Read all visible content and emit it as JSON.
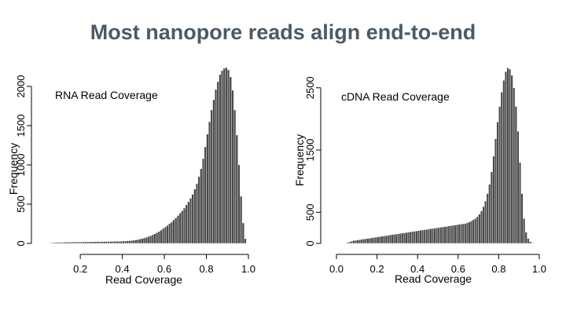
{
  "slide": {
    "title": "Most nanopore reads align end-to-end"
  },
  "chart_data": [
    {
      "type": "bar",
      "title": "RNA Read Coverage",
      "xlabel": "Read Coverage",
      "ylabel": "Frequency",
      "xlim": [
        0.05,
        1.0
      ],
      "ylim": [
        0,
        2000
      ],
      "xticks": [
        "0.2",
        "0.4",
        "0.6",
        "0.8",
        "1.0"
      ],
      "yticks": [
        "0",
        "500",
        "1000",
        "1500",
        "2000"
      ],
      "bin_width": 0.01,
      "colors": {
        "bar": "#4a4a4a",
        "edge": "#ffffff"
      },
      "bins": {
        "x": [
          0.05,
          0.06,
          0.07,
          0.08,
          0.09,
          0.1,
          0.11,
          0.12,
          0.13,
          0.14,
          0.15,
          0.16,
          0.17,
          0.18,
          0.19,
          0.2,
          0.21,
          0.22,
          0.23,
          0.24,
          0.25,
          0.26,
          0.27,
          0.28,
          0.29,
          0.3,
          0.31,
          0.32,
          0.33,
          0.34,
          0.35,
          0.36,
          0.37,
          0.38,
          0.39,
          0.4,
          0.41,
          0.42,
          0.43,
          0.44,
          0.45,
          0.46,
          0.47,
          0.48,
          0.49,
          0.5,
          0.51,
          0.52,
          0.53,
          0.54,
          0.55,
          0.56,
          0.57,
          0.58,
          0.59,
          0.6,
          0.61,
          0.62,
          0.63,
          0.64,
          0.65,
          0.66,
          0.67,
          0.68,
          0.69,
          0.7,
          0.71,
          0.72,
          0.73,
          0.74,
          0.75,
          0.76,
          0.77,
          0.78,
          0.79,
          0.8,
          0.81,
          0.82,
          0.83,
          0.84,
          0.85,
          0.86,
          0.87,
          0.88,
          0.89,
          0.9,
          0.91,
          0.92,
          0.93,
          0.94,
          0.95,
          0.96,
          0.97,
          0.98
        ],
        "values": [
          5,
          8,
          10,
          12,
          12,
          13,
          14,
          15,
          15,
          16,
          16,
          17,
          17,
          18,
          18,
          19,
          19,
          20,
          20,
          20,
          21,
          21,
          22,
          22,
          22,
          23,
          23,
          24,
          24,
          25,
          25,
          26,
          26,
          27,
          28,
          29,
          30,
          32,
          34,
          37,
          40,
          45,
          50,
          56,
          62,
          70,
          78,
          88,
          98,
          110,
          122,
          138,
          153,
          170,
          190,
          210,
          230,
          252,
          272,
          300,
          325,
          355,
          385,
          415,
          450,
          490,
          530,
          575,
          625,
          690,
          760,
          850,
          950,
          1080,
          1230,
          1390,
          1550,
          1700,
          1830,
          1960,
          2060,
          2150,
          2200,
          2230,
          2240,
          2210,
          2120,
          1950,
          1700,
          1380,
          1000,
          600,
          260,
          60
        ]
      }
    },
    {
      "type": "bar",
      "title": "cDNA Read Coverage",
      "xlabel": "Read Coverage",
      "ylabel": "Frequency",
      "xlim": [
        0.0,
        1.0
      ],
      "ylim": [
        0,
        2800
      ],
      "xticks": [
        "0.0",
        "0.2",
        "0.4",
        "0.6",
        "0.8",
        "1.0"
      ],
      "yticks": [
        "0",
        "500",
        "1500",
        "2500"
      ],
      "bin_width": 0.01,
      "colors": {
        "bar": "#4a4a4a",
        "edge": "#ffffff"
      },
      "bins": {
        "x": [
          0.04,
          0.05,
          0.06,
          0.07,
          0.08,
          0.09,
          0.1,
          0.11,
          0.12,
          0.13,
          0.14,
          0.15,
          0.16,
          0.17,
          0.18,
          0.19,
          0.2,
          0.21,
          0.22,
          0.23,
          0.24,
          0.25,
          0.26,
          0.27,
          0.28,
          0.29,
          0.3,
          0.31,
          0.32,
          0.33,
          0.34,
          0.35,
          0.36,
          0.37,
          0.38,
          0.39,
          0.4,
          0.41,
          0.42,
          0.43,
          0.44,
          0.45,
          0.46,
          0.47,
          0.48,
          0.49,
          0.5,
          0.51,
          0.52,
          0.53,
          0.54,
          0.55,
          0.56,
          0.57,
          0.58,
          0.59,
          0.6,
          0.61,
          0.62,
          0.63,
          0.64,
          0.65,
          0.66,
          0.67,
          0.68,
          0.69,
          0.7,
          0.71,
          0.72,
          0.73,
          0.74,
          0.75,
          0.76,
          0.77,
          0.78,
          0.79,
          0.8,
          0.81,
          0.82,
          0.83,
          0.84,
          0.85,
          0.86,
          0.87,
          0.88,
          0.89,
          0.9,
          0.91,
          0.92,
          0.93,
          0.94,
          0.95,
          0.96
        ],
        "values": [
          5,
          15,
          25,
          35,
          45,
          50,
          55,
          60,
          65,
          70,
          75,
          80,
          85,
          90,
          95,
          100,
          105,
          110,
          115,
          120,
          125,
          130,
          135,
          140,
          145,
          150,
          155,
          160,
          165,
          170,
          175,
          180,
          185,
          190,
          195,
          200,
          205,
          210,
          215,
          220,
          225,
          230,
          235,
          240,
          245,
          250,
          255,
          260,
          265,
          270,
          275,
          280,
          285,
          290,
          295,
          300,
          305,
          310,
          315,
          320,
          330,
          345,
          360,
          380,
          400,
          430,
          470,
          520,
          590,
          680,
          800,
          950,
          1150,
          1400,
          1680,
          1950,
          2200,
          2430,
          2620,
          2760,
          2820,
          2800,
          2700,
          2500,
          2200,
          1800,
          1300,
          800,
          400,
          180,
          80,
          30,
          10
        ]
      }
    }
  ]
}
